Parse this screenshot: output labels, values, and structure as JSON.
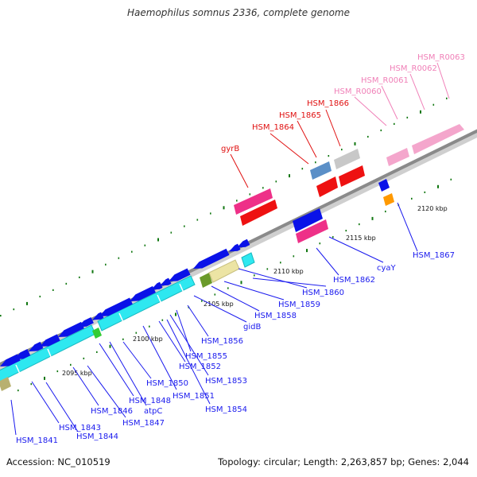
{
  "title": "Haemophilus somnus 2336, complete genome",
  "footer": {
    "accession": "Accession: NC_010519",
    "summary": "Topology: circular; Length: 2,263,857 bp; Genes: 2,044"
  },
  "colors": {
    "backbone": "#8a8a8a",
    "blue_genes": "#0a12e8",
    "cyan_genes": "#2ee8f0",
    "label_blue": "#1a1aee",
    "label_red": "#e01010",
    "label_pink": "#f080b8",
    "tick_green": "#117711"
  },
  "ticks": [
    "2095 kbp",
    "2100 kbp",
    "2105 kbp",
    "2110 kbp",
    "2115 kbp",
    "2120 kbp"
  ],
  "labels": {
    "lower": [
      "HSM_1841",
      "HSM_1843",
      "HSM_1844",
      "HSM_1846",
      "HSM_1847",
      "HSM_1848",
      "atpC",
      "HSM_1850",
      "HSM_1851",
      "HSM_1852",
      "HSM_1853",
      "HSM_1854",
      "HSM_1855",
      "HSM_1856",
      "gidB",
      "HSM_1858",
      "HSM_1859",
      "HSM_1860",
      "HSM_1862",
      "cyaY",
      "HSM_1867"
    ],
    "upper_red": [
      "gyrB",
      "HSM_1864",
      "HSM_1865",
      "HSM_1866"
    ],
    "upper_pink": [
      "HSM_R0060",
      "HSM_R0061",
      "HSM_R0062",
      "HSM_R0063"
    ]
  }
}
